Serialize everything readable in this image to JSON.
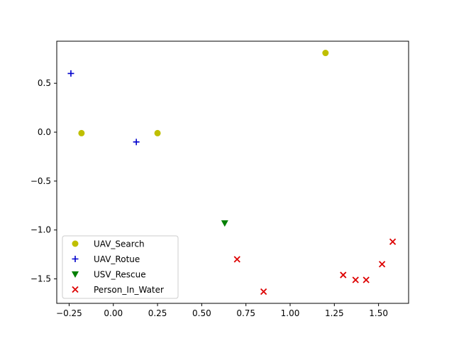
{
  "chart_data": {
    "type": "scatter",
    "xlim": [
      -0.32,
      1.67
    ],
    "ylim": [
      -1.75,
      0.93
    ],
    "xticks": [
      -0.25,
      0.0,
      0.25,
      0.5,
      0.75,
      1.0,
      1.25,
      1.5
    ],
    "xtick_labels": [
      "−0.25",
      "0.00",
      "0.25",
      "0.50",
      "0.75",
      "1.00",
      "1.25",
      "1.50"
    ],
    "yticks": [
      0.5,
      0.0,
      -0.5,
      -1.0,
      -1.5
    ],
    "ytick_labels": [
      "0.5",
      "0.0",
      "−0.5",
      "−1.0",
      "−1.5"
    ],
    "grid": false,
    "legend_position": "lower-left",
    "series": [
      {
        "name": "UAV_Search",
        "marker": "circle",
        "color": "#bfbf00",
        "points": [
          [
            -0.18,
            -0.01
          ],
          [
            0.25,
            -0.01
          ],
          [
            1.2,
            0.81
          ]
        ]
      },
      {
        "name": "UAV_Rotue",
        "marker": "plus",
        "color": "#0000cc",
        "points": [
          [
            -0.24,
            0.6
          ],
          [
            0.13,
            -0.1
          ]
        ]
      },
      {
        "name": "USV_Rescue",
        "marker": "triangle-down",
        "color": "#007f00",
        "points": [
          [
            0.63,
            -0.93
          ]
        ]
      },
      {
        "name": "Person_In_Water",
        "marker": "x",
        "color": "#dd0000",
        "points": [
          [
            0.7,
            -1.3
          ],
          [
            0.85,
            -1.63
          ],
          [
            1.3,
            -1.46
          ],
          [
            1.37,
            -1.51
          ],
          [
            1.43,
            -1.51
          ],
          [
            1.52,
            -1.35
          ],
          [
            1.58,
            -1.12
          ]
        ]
      }
    ]
  }
}
